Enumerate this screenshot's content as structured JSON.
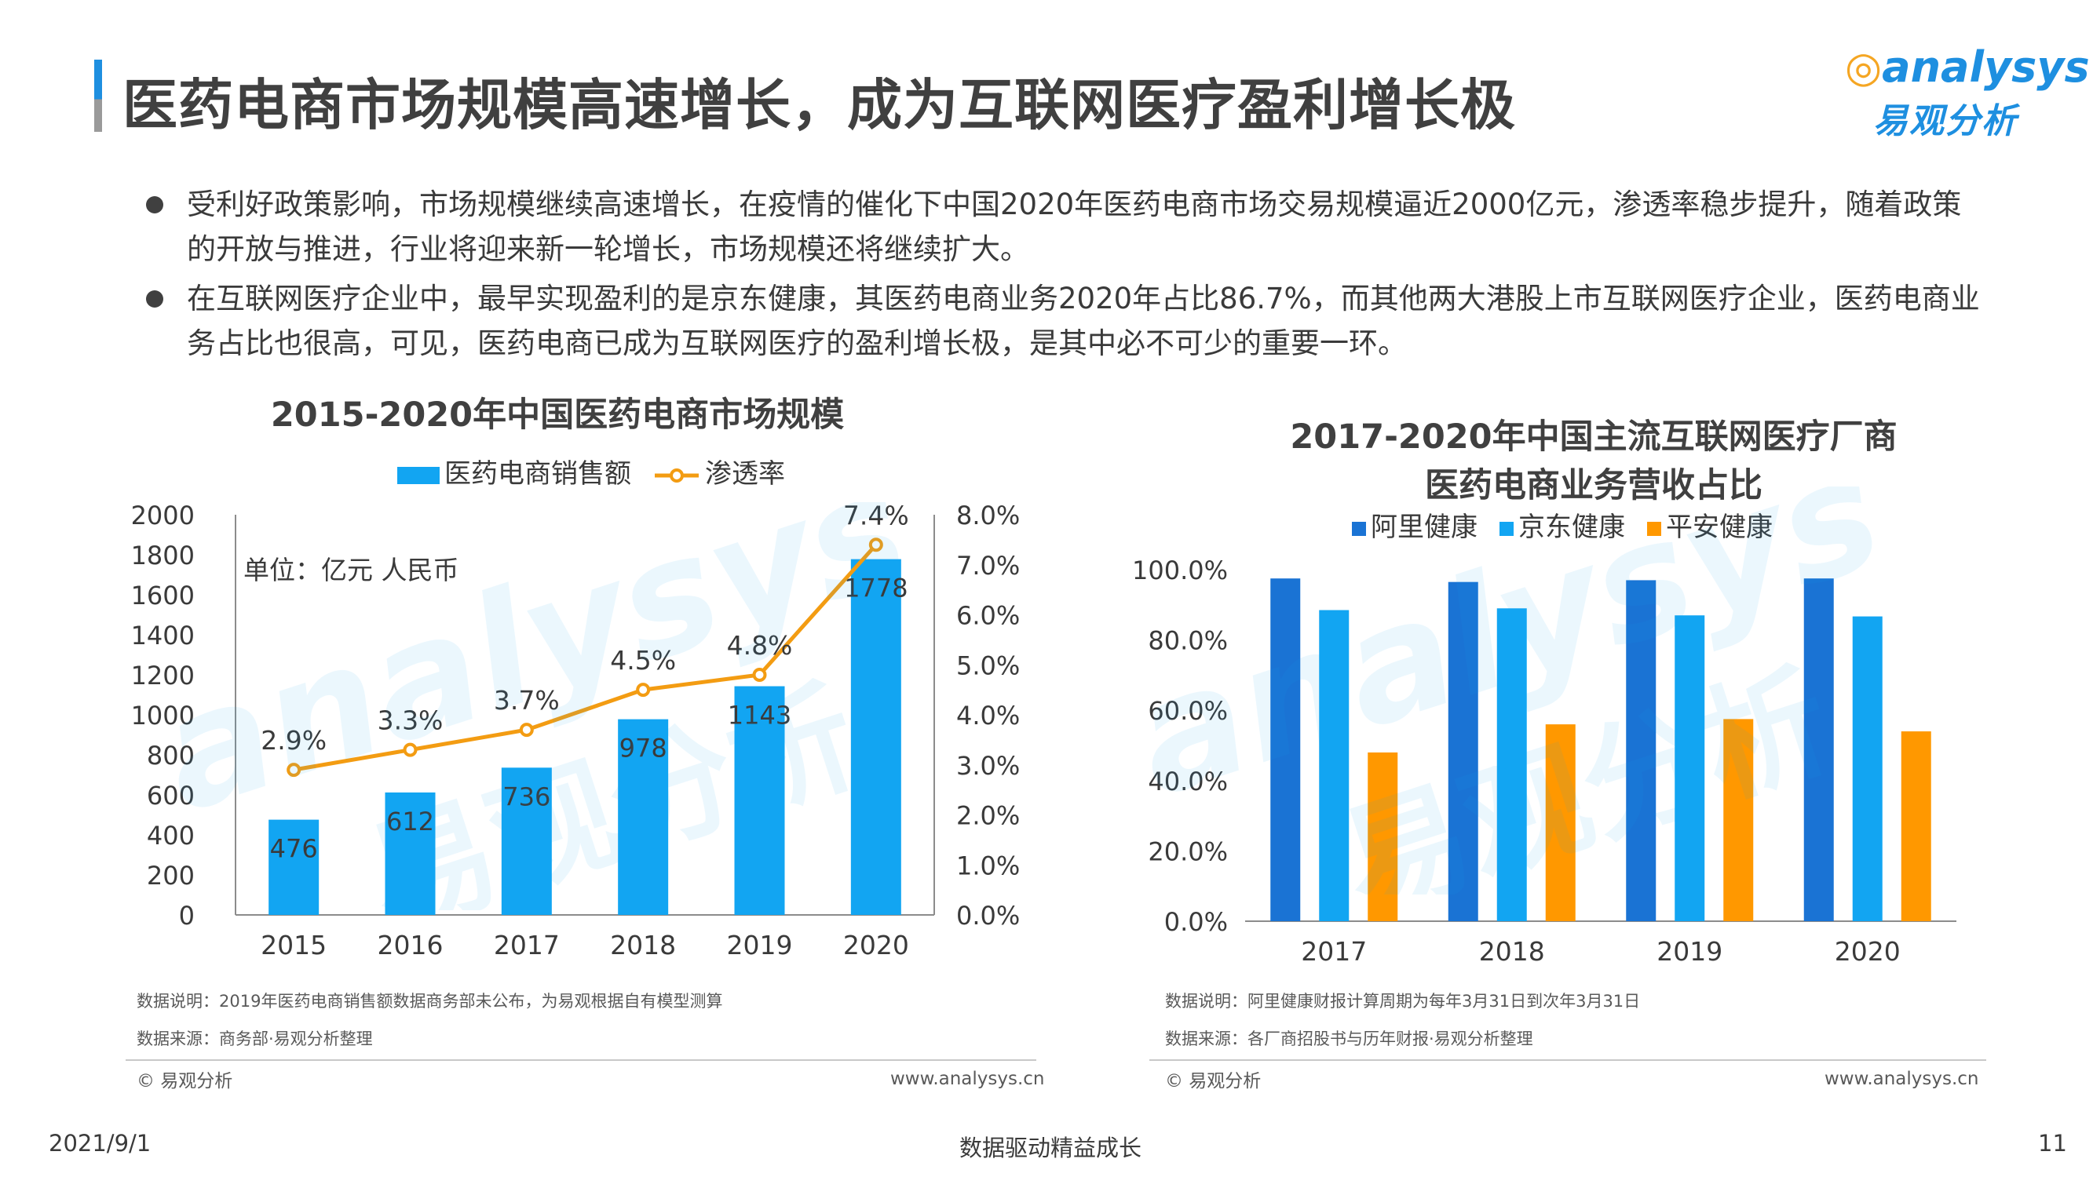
{
  "header": {
    "title": "医药电商市场规模高速增长，成为互联网医疗盈利增长极",
    "logo_top": "analysys",
    "logo_bottom": "易观分析"
  },
  "bullets": [
    "受利好政策影响，市场规模继续高速增长，在疫情的催化下中国2020年医药电商市场交易规模逼近2000亿元，渗透率稳步提升，随着政策的开放与推进，行业将迎来新一轮增长，市场规模还将继续扩大。",
    "在互联网医疗企业中，最早实现盈利的是京东健康，其医药电商业务2020年占比86.7%，而其他两大港股上市互联网医疗企业，医药电商业务占比也很高，可见，医药电商已成为互联网医疗的盈利增长极，是其中必不可少的重要一环。"
  ],
  "chart_data": [
    {
      "type": "bar",
      "title": "2015-2020年中国医药电商市场规模",
      "unit_label": "单位：亿元 人民币",
      "categories": [
        "2015",
        "2016",
        "2017",
        "2018",
        "2019",
        "2020"
      ],
      "series": [
        {
          "name": "医药电商销售额",
          "type": "bar",
          "axis": "left",
          "values": [
            476,
            612,
            736,
            978,
            1143,
            1778
          ],
          "color": "#12a5f2"
        },
        {
          "name": "渗透率",
          "type": "line",
          "axis": "right",
          "values": [
            2.9,
            3.3,
            3.7,
            4.5,
            4.8,
            7.4
          ],
          "labels": [
            "2.9%",
            "3.3%",
            "3.7%",
            "4.5%",
            "4.8%",
            "7.4%"
          ],
          "color": "#f39c12"
        }
      ],
      "y_left": {
        "min": 0,
        "max": 2000,
        "step": 200,
        "ticks": [
          "0",
          "200",
          "400",
          "600",
          "800",
          "1000",
          "1200",
          "1400",
          "1600",
          "1800",
          "2000"
        ]
      },
      "y_right": {
        "min": 0,
        "max": 8,
        "step": 1,
        "ticks": [
          "0.0%",
          "1.0%",
          "2.0%",
          "3.0%",
          "4.0%",
          "5.0%",
          "6.0%",
          "7.0%",
          "8.0%"
        ]
      }
    },
    {
      "type": "bar",
      "title_line1": "2017-2020年中国主流互联网医疗厂商",
      "title_line2": "医药电商业务营收占比",
      "categories": [
        "2017",
        "2018",
        "2019",
        "2020"
      ],
      "series": [
        {
          "name": "阿里健康",
          "values": [
            97.5,
            96.5,
            97.0,
            97.5
          ],
          "color": "#1a73d4"
        },
        {
          "name": "京东健康",
          "values": [
            88.5,
            89.0,
            87.0,
            86.7
          ],
          "color": "#12a5f2"
        },
        {
          "name": "平安健康",
          "values": [
            48.0,
            56.0,
            57.5,
            54.0
          ],
          "color": "#ff9800"
        }
      ],
      "y_axis": {
        "min": 0,
        "max": 100,
        "step": 20,
        "ticks": [
          "0.0%",
          "20.0%",
          "40.0%",
          "60.0%",
          "80.0%",
          "100.0%"
        ]
      }
    }
  ],
  "left_notes": {
    "note1": "数据说明：2019年医药电商销售额数据商务部未公布，为易观根据自有模型测算",
    "note2": "数据来源：商务部·易观分析整理",
    "copyright": "© 易观分析",
    "site": "www.analysys.cn"
  },
  "right_notes": {
    "note1": "数据说明：阿里健康财报计算周期为每年3月31日到次年3月31日",
    "note2": "数据来源：各厂商招股书与历年财报·易观分析整理",
    "copyright": "© 易观分析",
    "site": "www.analysys.cn"
  },
  "footer": {
    "date": "2021/9/1",
    "slogan": "数据驱动精益成长",
    "page": "11"
  },
  "watermark": {
    "latin": "analysys",
    "cn": "易观分析"
  },
  "colors": {
    "accent": "#1e8fe0",
    "bar_blue": "#12a5f2",
    "bar_dark": "#1a73d4",
    "orange": "#ff9800"
  }
}
